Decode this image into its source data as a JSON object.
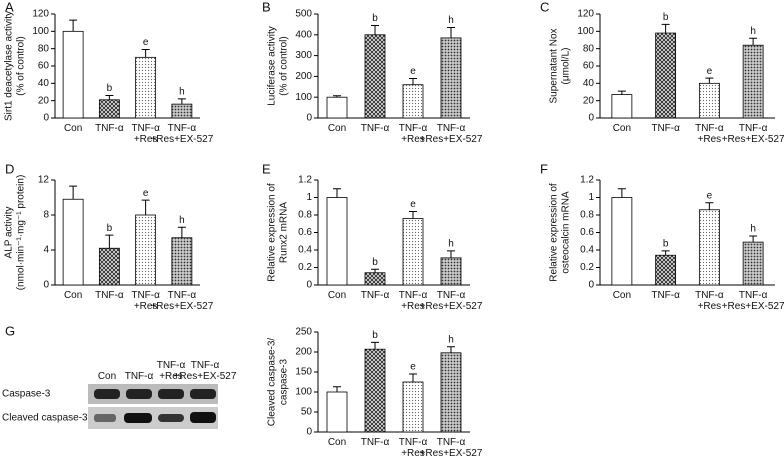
{
  "chart_data": [
    {
      "type": "bar",
      "panel": "A",
      "ylabel": [
        "Sirt1 deacetylase activity",
        "(% of control)"
      ],
      "categories": [
        "Con",
        "TNF-α",
        "TNF-α\n+Res",
        "TNF-α\n+Res+EX-527"
      ],
      "values": [
        100,
        21,
        70,
        16
      ],
      "errors": [
        13,
        5,
        9,
        6
      ],
      "annotations": [
        null,
        "b",
        "e",
        "h"
      ],
      "ylim": [
        0,
        120
      ],
      "yticks": [
        0,
        20,
        40,
        60,
        80,
        100,
        120
      ]
    },
    {
      "type": "bar",
      "panel": "B",
      "ylabel": [
        "Luciferase activity",
        "(% of control)"
      ],
      "categories": [
        "Con",
        "TNF-α",
        "TNF-α\n+Res",
        "TNF-α\n+Res+EX-527"
      ],
      "values": [
        100,
        400,
        160,
        385
      ],
      "errors": [
        7,
        45,
        30,
        50
      ],
      "annotations": [
        null,
        "b",
        "e",
        "h"
      ],
      "ylim": [
        0,
        500
      ],
      "yticks": [
        0,
        100,
        200,
        300,
        400,
        500
      ]
    },
    {
      "type": "bar",
      "panel": "C",
      "ylabel": [
        "Supernatant Nox",
        "(μmol/L)"
      ],
      "categories": [
        "Con",
        "TNF-α",
        "TNF-α\n+Res",
        "TNF-α\n+Res+EX-527"
      ],
      "values": [
        27,
        98,
        40,
        84
      ],
      "errors": [
        4,
        10,
        6,
        8
      ],
      "annotations": [
        null,
        "b",
        "e",
        "h"
      ],
      "ylim": [
        0,
        120
      ],
      "yticks": [
        0,
        20,
        40,
        60,
        80,
        100,
        120
      ]
    },
    {
      "type": "bar",
      "panel": "D",
      "ylabel": [
        "ALP activity",
        "(nmol·min⁻¹·mg⁻¹ protein)"
      ],
      "categories": [
        "Con",
        "TNF-α",
        "TNF-α\n+Res",
        "TNF-α\n+Res+EX-527"
      ],
      "values": [
        9.8,
        4.2,
        8,
        5.4
      ],
      "errors": [
        1.5,
        1.5,
        1.7,
        1.2
      ],
      "annotations": [
        null,
        "b",
        "e",
        "h"
      ],
      "ylim": [
        0,
        12
      ],
      "yticks": [
        0,
        4,
        8,
        12
      ]
    },
    {
      "type": "bar",
      "panel": "E",
      "ylabel": [
        "Relative expression of",
        "Runx2 mRNA"
      ],
      "categories": [
        "Con",
        "TNF-α",
        "TNF-α\n+Res",
        "TNF-α\n+Res+EX-527"
      ],
      "values": [
        1.0,
        0.14,
        0.76,
        0.31
      ],
      "errors": [
        0.1,
        0.04,
        0.08,
        0.08
      ],
      "annotations": [
        null,
        "b",
        "e",
        "h"
      ],
      "ylim": [
        0,
        1.2
      ],
      "yticks": [
        0,
        0.2,
        0.4,
        0.6,
        0.8,
        1,
        1.2
      ]
    },
    {
      "type": "bar",
      "panel": "F",
      "ylabel": [
        "Relative expression of",
        "osteocalcin mRNA"
      ],
      "categories": [
        "Con",
        "TNF-α",
        "TNF-α\n+Res",
        "TNF-α\n+Res+EX-527"
      ],
      "values": [
        1.0,
        0.34,
        0.86,
        0.49
      ],
      "errors": [
        0.1,
        0.05,
        0.08,
        0.07
      ],
      "annotations": [
        null,
        "b",
        "e",
        "h"
      ],
      "ylim": [
        0,
        1.2
      ],
      "yticks": [
        0,
        0.2,
        0.4,
        0.6,
        0.8,
        1,
        1.2
      ]
    },
    {
      "type": "bar",
      "panel": "G",
      "ylabel": [
        "Cleaved caspase-3/",
        "caspase-3"
      ],
      "categories": [
        "Con",
        "TNF-α",
        "TNF-α\n+Res",
        "TNF-α\n+Res+EX-527"
      ],
      "values": [
        100,
        207,
        125,
        198
      ],
      "errors": [
        13,
        17,
        20,
        15
      ],
      "annotations": [
        null,
        "b",
        "e",
        "h"
      ],
      "ylim": [
        0,
        250
      ],
      "yticks": [
        0,
        50,
        100,
        150,
        200,
        250
      ]
    }
  ],
  "blot": {
    "columns": [
      "Con",
      "TNF-α",
      "TNF-α\n+Res",
      "TNF-α\n+Res+EX-527"
    ],
    "rows": [
      "Caspase-3",
      "Cleaved caspase-3"
    ]
  }
}
